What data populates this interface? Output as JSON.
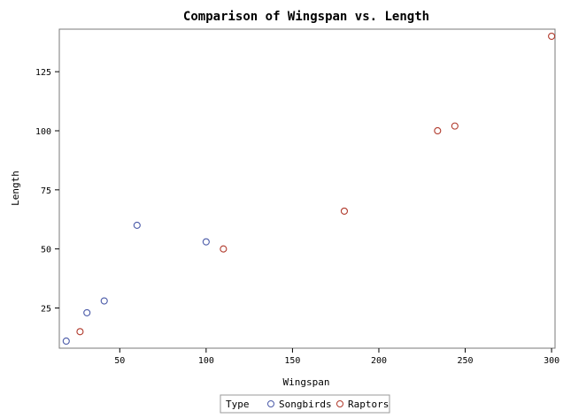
{
  "chart_data": {
    "type": "scatter",
    "title": "Comparison of Wingspan vs. Length",
    "xlabel": "Wingspan",
    "ylabel": "Length",
    "xlim": [
      15,
      302
    ],
    "ylim": [
      8,
      143
    ],
    "x_ticks": [
      "50",
      "100",
      "150",
      "200",
      "250",
      "300"
    ],
    "y_ticks": [
      "25",
      "50",
      "75",
      "100",
      "125"
    ],
    "grid": false,
    "legend": {
      "title": "Type",
      "position": "bottom-center",
      "entries": [
        "Songbirds",
        "Raptors"
      ]
    },
    "series": [
      {
        "name": "Songbirds",
        "color": "#4a5aa8",
        "points": [
          {
            "x": 19,
            "y": 11
          },
          {
            "x": 31,
            "y": 23
          },
          {
            "x": 41,
            "y": 28
          },
          {
            "x": 60,
            "y": 60
          },
          {
            "x": 100,
            "y": 53
          }
        ]
      },
      {
        "name": "Raptors",
        "color": "#b0392b",
        "points": [
          {
            "x": 27,
            "y": 15
          },
          {
            "x": 110,
            "y": 50
          },
          {
            "x": 180,
            "y": 66
          },
          {
            "x": 234,
            "y": 100
          },
          {
            "x": 244,
            "y": 102
          },
          {
            "x": 300,
            "y": 140
          }
        ]
      }
    ]
  }
}
